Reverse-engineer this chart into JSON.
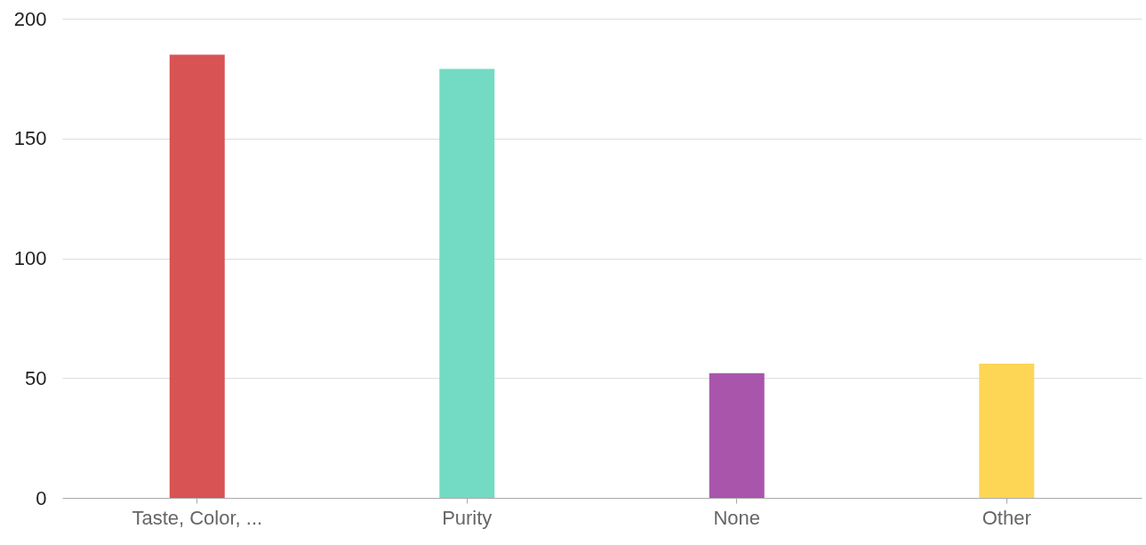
{
  "chart_data": {
    "type": "bar",
    "categories": [
      "Taste, Color, ...",
      "Purity",
      "None",
      "Other"
    ],
    "values": [
      185,
      179,
      52,
      56
    ],
    "colors": [
      "#d64a4b",
      "#6cd9c0",
      "#a44ca6",
      "#fed44c"
    ],
    "ylim": [
      0,
      200
    ],
    "yticks": [
      0,
      50,
      100,
      150,
      200
    ],
    "grid": "y",
    "legend": false
  }
}
